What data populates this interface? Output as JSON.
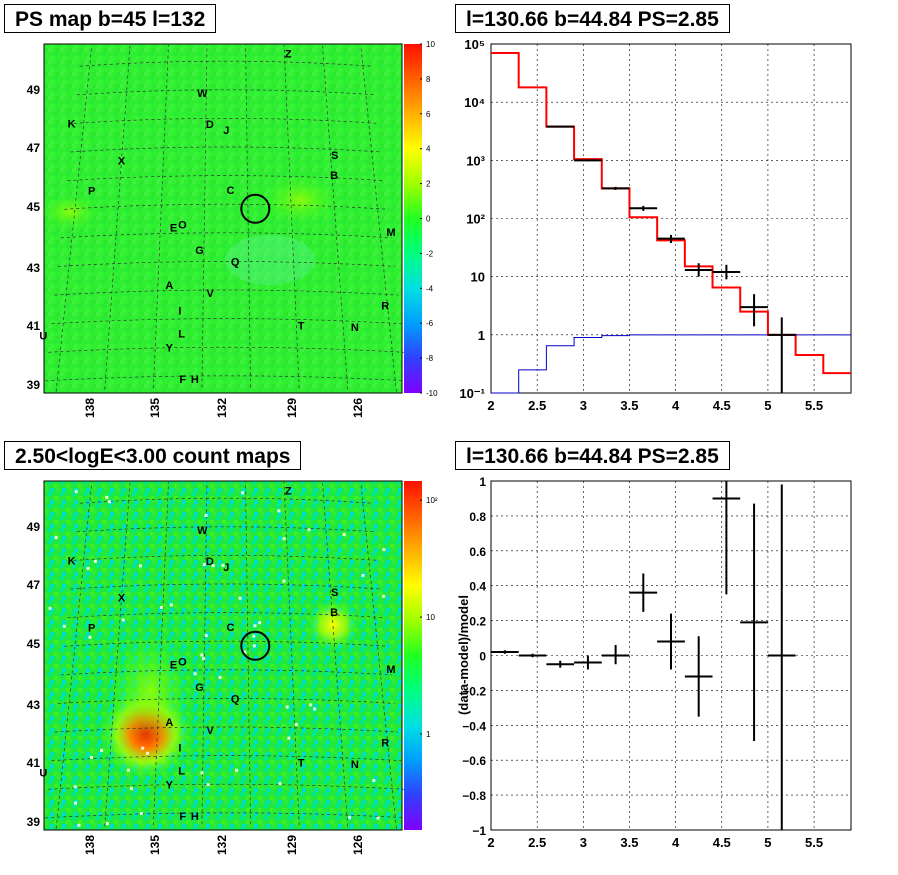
{
  "panels": {
    "map_top": {
      "title": "PS map b=45 l=132",
      "colorbar_labels": [
        "10",
        "8",
        "6",
        "4",
        "2",
        "0",
        "-2",
        "-4",
        "-6",
        "-8",
        "-10"
      ],
      "colorbar_range": [
        -10,
        10
      ],
      "colorscale": [
        "#8000ff",
        "#3040ff",
        "#00a0ff",
        "#00e0e0",
        "#00ff80",
        "#20ff20",
        "#a0ff00",
        "#ffff00",
        "#ffb000",
        "#ff6000",
        "#ff1000"
      ]
    },
    "map_bottom": {
      "title": "2.50<logE<3.00 count maps",
      "colorbar_labels": [
        "10²",
        "10",
        "1"
      ],
      "colorscale": [
        "#8000ff",
        "#3040ff",
        "#00a0ff",
        "#00e0e0",
        "#00ff80",
        "#20ff20",
        "#a0ff00",
        "#ffff00",
        "#ffb000",
        "#ff6000",
        "#ff1000"
      ]
    },
    "spectrum": {
      "title": "l=130.66 b=44.84 PS=2.85"
    },
    "residual": {
      "title": "l=130.66 b=44.84 PS=2.85"
    }
  },
  "maps": {
    "x_tick_labels": [
      "138",
      "135",
      "132",
      "129",
      "126"
    ],
    "y_tick_labels": [
      "49",
      "47",
      "45",
      "43",
      "41",
      "39"
    ],
    "source_labels": [
      {
        "text": "Z",
        "l": 128.8,
        "b": 50.3
      },
      {
        "text": "W",
        "l": 133.2,
        "b": 48.9
      },
      {
        "text": "K",
        "l": 139.6,
        "b": 48.0
      },
      {
        "text": "D",
        "l": 132.8,
        "b": 47.8
      },
      {
        "text": "J",
        "l": 132.0,
        "b": 47.6
      },
      {
        "text": "X",
        "l": 137.0,
        "b": 46.6
      },
      {
        "text": "S",
        "l": 126.8,
        "b": 46.8
      },
      {
        "text": "B",
        "l": 126.9,
        "b": 46.1
      },
      {
        "text": "P",
        "l": 138.3,
        "b": 45.6
      },
      {
        "text": "C",
        "l": 131.8,
        "b": 45.5
      },
      {
        "text": "M",
        "l": 124.5,
        "b": 44.2
      },
      {
        "text": "E",
        "l": 134.4,
        "b": 44.2
      },
      {
        "text": "O",
        "l": 134.0,
        "b": 44.3
      },
      {
        "text": "G",
        "l": 133.2,
        "b": 43.4
      },
      {
        "text": "Q",
        "l": 131.6,
        "b": 43.0
      },
      {
        "text": "A",
        "l": 134.5,
        "b": 42.2
      },
      {
        "text": "V",
        "l": 132.7,
        "b": 41.9
      },
      {
        "text": "I",
        "l": 134.0,
        "b": 41.3
      },
      {
        "text": "R",
        "l": 125.1,
        "b": 41.6
      },
      {
        "text": "U",
        "l": 139.8,
        "b": 40.6
      },
      {
        "text": "T",
        "l": 128.8,
        "b": 40.8
      },
      {
        "text": "N",
        "l": 126.5,
        "b": 40.8
      },
      {
        "text": "L",
        "l": 133.9,
        "b": 40.5
      },
      {
        "text": "Y",
        "l": 134.4,
        "b": 40.0
      },
      {
        "text": "F",
        "l": 133.8,
        "b": 38.9
      },
      {
        "text": "H",
        "l": 133.3,
        "b": 38.9
      }
    ],
    "target_circle": {
      "l": 130.66,
      "b": 44.84
    }
  },
  "chart_data": [
    {
      "type": "line",
      "title": "l=130.66 b=44.84 PS=2.85",
      "xlabel": "",
      "ylabel": "",
      "xlim": [
        2,
        5.9
      ],
      "ylim": [
        0.1,
        100000
      ],
      "ylog": true,
      "grid": true,
      "x_tick_labels": [
        "2",
        "2.5",
        "3",
        "3.5",
        "4",
        "4.5",
        "5",
        "5.5"
      ],
      "y_tick_labels": [
        "10⁻¹",
        "1",
        "10",
        "10²",
        "10³",
        "10⁴",
        "10⁵"
      ],
      "bin_edges": [
        2.0,
        2.3,
        2.6,
        2.9,
        3.2,
        3.5,
        3.8,
        4.1,
        4.4,
        4.7,
        5.0,
        5.3,
        5.6,
        5.9
      ],
      "series": [
        {
          "name": "",
          "style": "step",
          "color": "#ff0000",
          "values": [
            70000,
            18000,
            3800,
            1050,
            330,
            105,
            42,
            15,
            6.5,
            2.5,
            1.0,
            0.45,
            0.22
          ]
        },
        {
          "name": "",
          "style": "step",
          "color": "#0000cc",
          "values": [
            0.1,
            0.25,
            0.65,
            0.9,
            0.97,
            1.0,
            1.0,
            1.0,
            1.0,
            1.0,
            1.0,
            1.0,
            1.0
          ]
        },
        {
          "name": "",
          "style": "errorbar",
          "color": "#000000",
          "points": [
            {
              "x": 2.75,
              "y": 3800,
              "ylo": 3700,
              "yhi": 3900
            },
            {
              "x": 3.05,
              "y": 1000,
              "ylo": 960,
              "yhi": 1040
            },
            {
              "x": 3.35,
              "y": 330,
              "ylo": 310,
              "yhi": 350
            },
            {
              "x": 3.65,
              "y": 150,
              "ylo": 135,
              "yhi": 165
            },
            {
              "x": 3.95,
              "y": 45,
              "ylo": 38,
              "yhi": 52
            },
            {
              "x": 4.25,
              "y": 13,
              "ylo": 10,
              "yhi": 17
            },
            {
              "x": 4.55,
              "y": 12,
              "ylo": 9,
              "yhi": 16
            },
            {
              "x": 4.85,
              "y": 3,
              "ylo": 1.4,
              "yhi": 5
            },
            {
              "x": 5.15,
              "y": 1.0,
              "ylo": 0.1,
              "yhi": 2.0
            }
          ]
        }
      ]
    },
    {
      "type": "scatter",
      "title": "l=130.66 b=44.84 PS=2.85",
      "xlabel": "",
      "ylabel": "(data-model)/model",
      "xlim": [
        2,
        5.9
      ],
      "ylim": [
        -1,
        1
      ],
      "grid": true,
      "x_tick_labels": [
        "2",
        "2.5",
        "3",
        "3.5",
        "4",
        "4.5",
        "5",
        "5.5"
      ],
      "y_tick_labels": [
        "1",
        "0.8",
        "0.6",
        "0.4",
        "0.2",
        "0",
        "−0.2",
        "−0.4",
        "−0.6",
        "−0.8",
        "−1"
      ],
      "series": [
        {
          "name": "",
          "style": "errorbar",
          "color": "#000000",
          "points": [
            {
              "x": 2.15,
              "y": 0.02,
              "ylo": 0.01,
              "yhi": 0.03
            },
            {
              "x": 2.45,
              "y": 0.0,
              "ylo": -0.01,
              "yhi": 0.01
            },
            {
              "x": 2.75,
              "y": -0.05,
              "ylo": -0.07,
              "yhi": -0.03
            },
            {
              "x": 3.05,
              "y": -0.04,
              "ylo": -0.08,
              "yhi": 0.0
            },
            {
              "x": 3.35,
              "y": 0.0,
              "ylo": -0.05,
              "yhi": 0.06
            },
            {
              "x": 3.65,
              "y": 0.36,
              "ylo": 0.25,
              "yhi": 0.47
            },
            {
              "x": 3.95,
              "y": 0.08,
              "ylo": -0.08,
              "yhi": 0.24
            },
            {
              "x": 4.25,
              "y": -0.12,
              "ylo": -0.35,
              "yhi": 0.11
            },
            {
              "x": 4.55,
              "y": 0.9,
              "ylo": 0.35,
              "yhi": 1.0
            },
            {
              "x": 4.85,
              "y": 0.19,
              "ylo": -0.49,
              "yhi": 0.87
            },
            {
              "x": 5.15,
              "y": 0.0,
              "ylo": -1.0,
              "yhi": 0.98
            }
          ]
        }
      ]
    }
  ]
}
